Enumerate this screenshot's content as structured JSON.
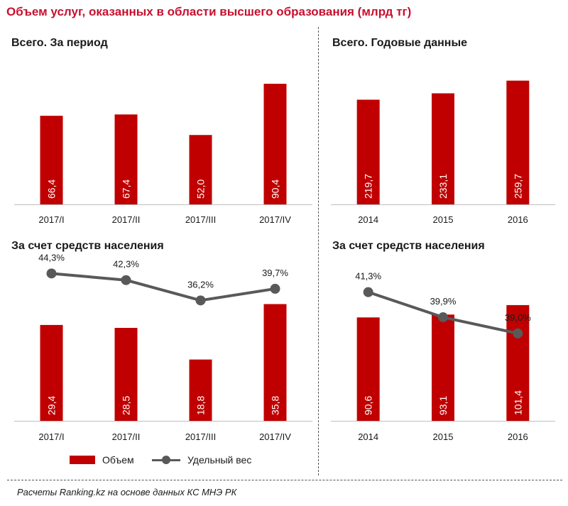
{
  "title": "Объем услуг, оказанных в области высшего образования (млрд тг)",
  "colors": {
    "bar": "#c00000",
    "line": "#595959",
    "title": "#c8102e"
  },
  "legend": {
    "volume": "Объем",
    "share": "Удельный вес"
  },
  "source": "Расчеты Ranking.kz на основе данных КС МНЭ РК",
  "chart_data": [
    {
      "id": "total-quarterly",
      "type": "bar",
      "title": "Всего. За период",
      "categories": [
        "2017/I",
        "2017/II",
        "2017/III",
        "2017/IV"
      ],
      "values": [
        66.4,
        67.4,
        52.0,
        90.4
      ],
      "value_labels": [
        "66,4",
        "67,4",
        "52,0",
        "90,4"
      ],
      "ylim": [
        0,
        100
      ]
    },
    {
      "id": "total-annual",
      "type": "bar",
      "title": "Всего. Годовые данные",
      "categories": [
        "2014",
        "2015",
        "2016"
      ],
      "values": [
        219.7,
        233.1,
        259.7
      ],
      "value_labels": [
        "219,7",
        "233,1",
        "259,7"
      ],
      "ylim": [
        0,
        280
      ]
    },
    {
      "id": "population-quarterly",
      "type": "bar",
      "title": "За счет средств населения",
      "categories": [
        "2017/I",
        "2017/II",
        "2017/III",
        "2017/IV"
      ],
      "values": [
        29.4,
        28.5,
        18.8,
        35.8
      ],
      "value_labels": [
        "29,4",
        "28,5",
        "18,8",
        "35,8"
      ],
      "ylim": [
        0,
        42
      ],
      "line": {
        "name": "Удельный вес",
        "values": [
          44.3,
          42.3,
          36.2,
          39.7
        ],
        "value_labels": [
          "44,3%",
          "42,3%",
          "36,2%",
          "39,7%"
        ],
        "ylim": [
          0,
          48
        ]
      }
    },
    {
      "id": "population-annual",
      "type": "bar",
      "title": "За счет средств населения",
      "categories": [
        "2014",
        "2015",
        "2016"
      ],
      "values": [
        90.6,
        93.1,
        101.4
      ],
      "value_labels": [
        "90,6",
        "93,1",
        "101,4"
      ],
      "ylim": [
        0,
        120
      ],
      "line": {
        "name": "Удельный вес",
        "values": [
          41.3,
          39.9,
          39.0
        ],
        "value_labels": [
          "41,3%",
          "39,9%",
          "39,0%"
        ],
        "ylim": [
          36.5,
          41.8
        ]
      }
    }
  ]
}
